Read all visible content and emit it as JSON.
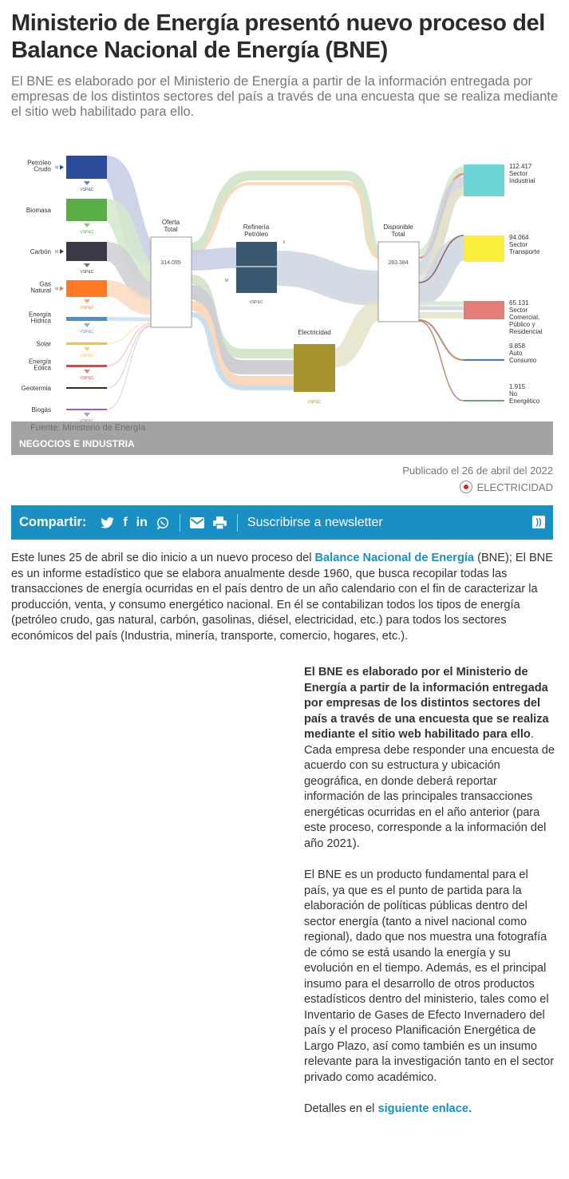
{
  "article": {
    "title": "Ministerio de Energía presentó nuevo proceso del Balance Nacional de Energía (BNE)",
    "subtitle": "El BNE es elaborado por el Ministerio de Energía a partir de la información entregada por empresas de los distintos sectores del país a través de una encuesta que se realiza mediante el sitio web habilitado para ello.",
    "published": "Publicado el 26 de abril del 2022",
    "tag": "ELECTRICIDAD"
  },
  "figure": {
    "category": "NEGOCIOS E INDUSTRIA",
    "source": "Fuente: Ministerio de Energía",
    "sources": [
      "Petróleo Crudo",
      "Biomasa",
      "Carbón",
      "Gas Natural",
      "Energía Hídrica",
      "Solar",
      "Energía Eólica",
      "Geotermia",
      "Biogás"
    ],
    "source_colors": [
      "#2a4b9b",
      "#5aae45",
      "#3a3a46",
      "#ff7a22",
      "#4a90cf",
      "#f2c230",
      "#ef4040",
      "#3b2a1e",
      "#9a5ec8"
    ],
    "vspc": "VSP&C",
    "m": "M",
    "x": "X",
    "oferta": {
      "label": "Oferta Total",
      "value": "314.095"
    },
    "refineria": {
      "label": "Refinería Petróleo",
      "color": "#3a5770"
    },
    "electricidad": {
      "label": "Electricidad",
      "color": "#a8922f"
    },
    "disponible": {
      "label": "Disponible Total",
      "value": "283.384"
    },
    "outputs": [
      {
        "value": "112.417",
        "label": "Sector Industrial",
        "color": "#6dd5d5"
      },
      {
        "value": "94.064",
        "label": "Sector Transporte",
        "color": "#fbee3a"
      },
      {
        "value": "65.131",
        "label": "Sector Comercial, Público y Residencial",
        "color": "#e27e77"
      },
      {
        "value": "9.858",
        "label": "Auto Consumo",
        "color": "#3c7fbf"
      },
      {
        "value": "1.915",
        "label": "No Energético",
        "color": "#6aaa6a"
      }
    ]
  },
  "share": {
    "label": "Compartir:",
    "newsletter": "Suscribirse a newsletter"
  },
  "body": {
    "p1_a": "Este lunes 25 de abril se dio inicio a un nuevo proceso del ",
    "p1_link": "Balance Nacional de Energía",
    "p1_b": " (BNE); El BNE es un informe estadístico que se elabora anualmente desde 1960, que busca recopilar todas las transacciones de energía ocurridas en el país dentro de un año calendario con el fin de caracterizar la producción, venta, y consumo energético nacional. En él se contabilizan todos los tipos de energía (petróleo crudo, gas natural, carbón, gasolinas, diésel, electricidad, etc.)  para todos los sectores económicos del país (Industria, minería, transporte, comercio, hogares, etc.).",
    "p2_bold": "El BNE es elaborado por el Ministerio de Energía a partir de la información entregada por empresas de los distintos sectores del país a través de una encuesta que se realiza mediante el sitio web habilitado para ello",
    "p2_rest": ". Cada empresa debe responder una encuesta de acuerdo con su estructura y ubicación geográfica, en donde deberá reportar información de las principales transacciones energéticas ocurridas en el año anterior (para este proceso, corresponde a la información del año 2021).",
    "p3": "El BNE es un producto fundamental para el país, ya que es el punto de partida para la elaboración de políticas públicas dentro del sector energía (tanto a nivel nacional como regional), dado que nos muestra una fotografía de cómo se está usando la energía y su evolución en el tiempo. Además, es el principal insumo para el desarrollo de otros productos estadísticos dentro del ministerio, tales como el Inventario de Gases de Efecto Invernadero del país y el proceso Planificación Energética de Largo Plazo, así como también es un insumo relevante para la investigación tanto en el sector privado como académico.",
    "p4_a": "Detalles en el ",
    "p4_link": "siguiente enlace."
  }
}
